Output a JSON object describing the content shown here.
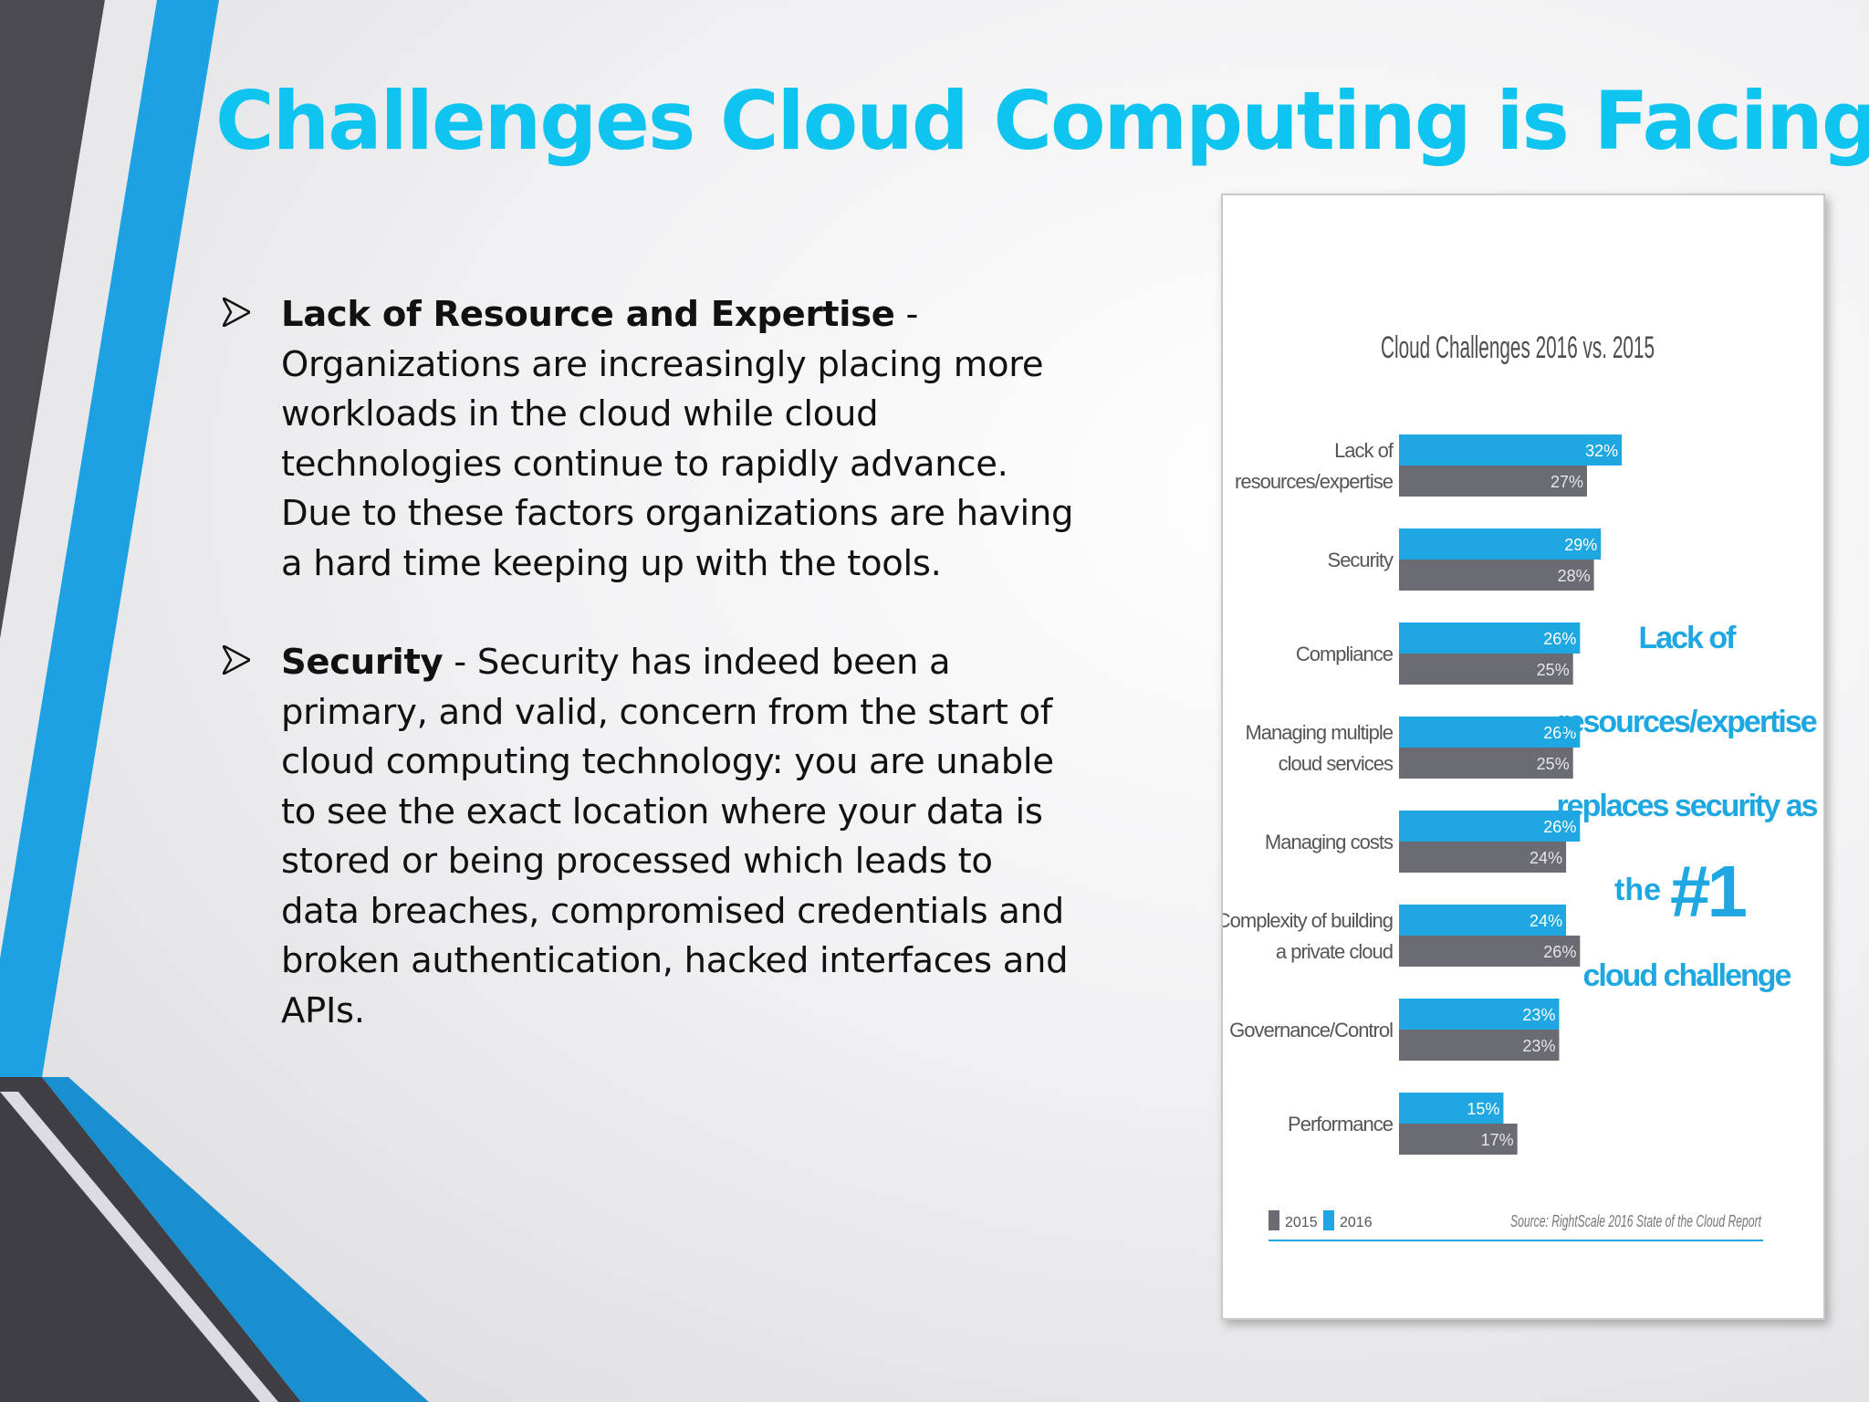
{
  "slide": {
    "title": "Challenges Cloud Computing is Facing",
    "bullets": [
      {
        "heading": "Lack of Resource and Expertise",
        "text": " - Organizations are increasingly placing  more workloads in the cloud while cloud technologies continue to rapidly advance. Due to these factors organizations are having a hard time keeping up with the tools."
      },
      {
        "heading": "Security",
        "text": " - Security has indeed been a primary, and valid, concern from the start of cloud computing technology: you are unable to see the exact location where your data is stored or being processed which leads to  data breaches, compromised credentials and broken authentication, hacked interfaces and APIs."
      }
    ],
    "bullet_icon": "arrowhead-bullet-icon",
    "colors": {
      "title": "#0fc4ee",
      "bar_2016": "#1ea7e1",
      "bar_2015": "#6b6b74",
      "stripe_blue": "#1da1e2",
      "stripe_dark": "#4a4a4f"
    }
  },
  "chart_data": {
    "type": "bar",
    "orientation": "horizontal",
    "title": "Cloud Challenges 2016 vs. 2015",
    "categories": [
      "Lack of resources/expertise",
      "Security",
      "Compliance",
      "Managing multiple cloud services",
      "Managing costs",
      "Complexity of building a private cloud",
      "Governance/Control",
      "Performance"
    ],
    "category_lines": [
      [
        "Lack of",
        "resources/expertise"
      ],
      [
        "Security"
      ],
      [
        "Compliance"
      ],
      [
        "Managing multiple",
        "cloud services"
      ],
      [
        "Managing costs"
      ],
      [
        "Complexity of building",
        "a private cloud"
      ],
      [
        "Governance/Control"
      ],
      [
        "Performance"
      ]
    ],
    "series": [
      {
        "name": "2016",
        "values": [
          32,
          29,
          26,
          26,
          26,
          24,
          23,
          15
        ]
      },
      {
        "name": "2015",
        "values": [
          27,
          28,
          25,
          25,
          24,
          26,
          23,
          17
        ]
      }
    ],
    "xlim": [
      0,
      35
    ],
    "legend": "bottom-left",
    "annotation": {
      "lines": [
        "Lack of",
        "resources/expertise",
        "replaces security as"
      ],
      "prefix": "the",
      "number": "#1",
      "last": "cloud challenge"
    },
    "source": "Source: RightScale 2016 State of the Cloud Report"
  }
}
